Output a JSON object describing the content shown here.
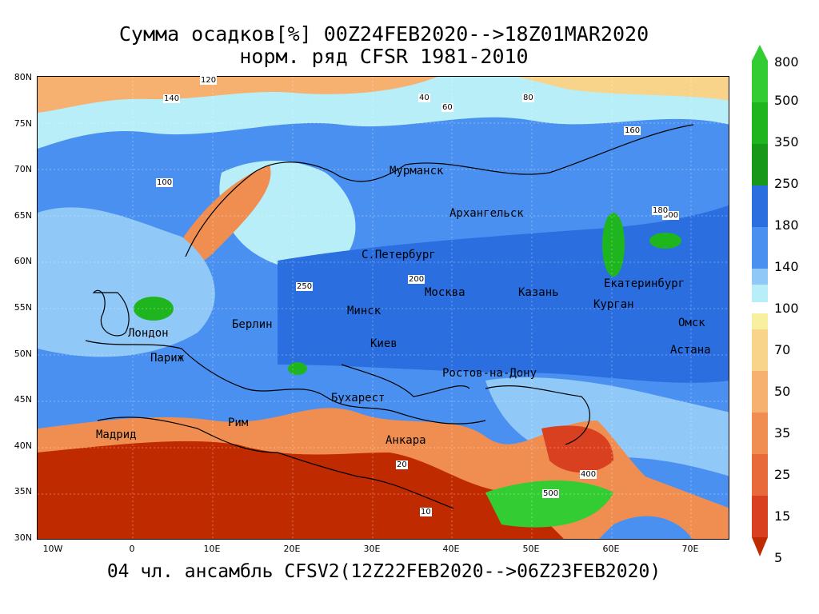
{
  "titles": {
    "line1": "Сумма осадков[%] 00Z24FEB2020-->18Z01MAR2020",
    "line2": "норм. ряд CFSR 1981-2010",
    "footer": "04 чл. ансамбль CFSV2(12Z22FEB2020-->06Z23FEB2020)"
  },
  "axes": {
    "lat_labels": [
      "80N",
      "75N",
      "70N",
      "65N",
      "60N",
      "55N",
      "50N",
      "45N",
      "40N",
      "35N",
      "30N"
    ],
    "lon_labels": [
      "10W",
      "0",
      "10E",
      "20E",
      "30E",
      "40E",
      "50E",
      "60E",
      "70E"
    ]
  },
  "colorbar": {
    "labels": [
      "800",
      "500",
      "350",
      "250",
      "180",
      "140",
      "100",
      "70",
      "50",
      "35",
      "25",
      "15",
      "5"
    ],
    "colors": {
      "c800": "#33cc33",
      "c500": "#1fb51f",
      "c350": "#189818",
      "c250": "#2a6ee0",
      "c180": "#4a90f0",
      "c140": "#90c8f8",
      "c120": "#b8eef8",
      "c80": "#f7f0a0",
      "c70": "#f8d48a",
      "c50": "#f6b070",
      "c35": "#f08e52",
      "c25": "#e8693a",
      "c15": "#d94020",
      "c5": "#c02a00"
    }
  },
  "cities": [
    {
      "name": "Мурманск"
    },
    {
      "name": "Архангельск"
    },
    {
      "name": "С.Петербург"
    },
    {
      "name": "Москва"
    },
    {
      "name": "Казань"
    },
    {
      "name": "Екатеринбург"
    },
    {
      "name": "Курган"
    },
    {
      "name": "Омск"
    },
    {
      "name": "Астана"
    },
    {
      "name": "Минск"
    },
    {
      "name": "Киев"
    },
    {
      "name": "Берлин"
    },
    {
      "name": "Лондон"
    },
    {
      "name": "Париж"
    },
    {
      "name": "Ростов-на-Дону"
    },
    {
      "name": "Бухарест"
    },
    {
      "name": "Рим"
    },
    {
      "name": "Мадрид"
    },
    {
      "name": "Анкара"
    }
  ],
  "contour_labels": [
    "120",
    "140",
    "100",
    "40",
    "60",
    "80",
    "160",
    "200",
    "300",
    "500",
    "20",
    "10",
    "180",
    "400",
    "250"
  ]
}
